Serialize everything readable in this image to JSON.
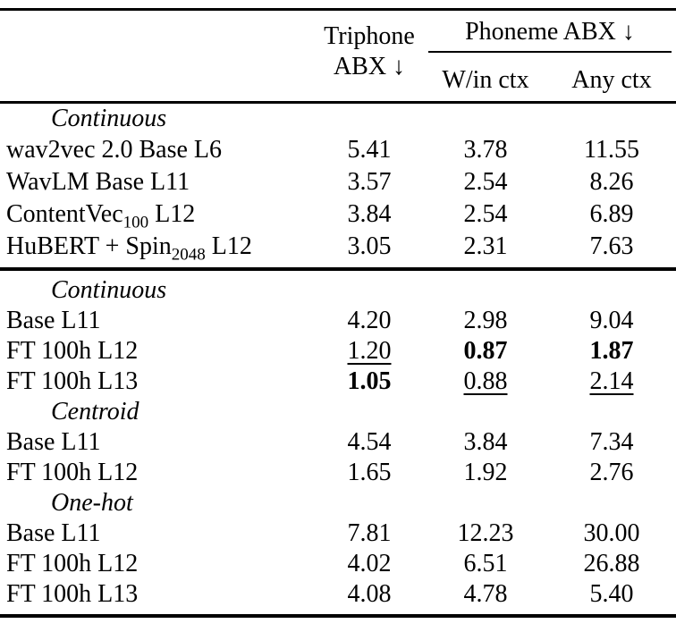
{
  "page": {
    "background": "#ffffff",
    "text_color": "#000000"
  },
  "table": {
    "header": {
      "col_triphone_line1": "Triphone",
      "col_triphone_line2": "ABX ↓",
      "col_phoneme_group": "Phoneme ABX ↓",
      "col_win_ctx": "W/in ctx",
      "col_any_ctx": "Any ctx"
    },
    "block1": {
      "section_label": "Continuous",
      "rows": [
        {
          "label": "wav2vec 2.0 Base L6",
          "triphone": "5.41",
          "win_ctx": "3.78",
          "any_ctx": "11.55"
        },
        {
          "label": "WavLM Base L11",
          "triphone": "3.57",
          "win_ctx": "2.54",
          "any_ctx": "8.26"
        },
        {
          "label_pre": "ContentVec",
          "label_sub": "100",
          "label_post": " L12",
          "triphone": "3.84",
          "win_ctx": "2.54",
          "any_ctx": "6.89"
        },
        {
          "label_pre": "HuBERT + Spin",
          "label_sub": "2048",
          "label_post": " L12",
          "triphone": "3.05",
          "win_ctx": "2.31",
          "any_ctx": "7.63"
        }
      ]
    },
    "block2": {
      "sections": [
        {
          "section_label": "Continuous",
          "rows": [
            {
              "label": "Base L11",
              "triphone": "4.20",
              "win_ctx": "2.98",
              "any_ctx": "9.04"
            },
            {
              "label": "FT 100h L12",
              "triphone": "1.20",
              "win_ctx": "0.87",
              "any_ctx": "1.87"
            },
            {
              "label": "FT 100h L13",
              "triphone": "1.05",
              "win_ctx": "0.88",
              "any_ctx": "2.14"
            }
          ]
        },
        {
          "section_label": "Centroid",
          "rows": [
            {
              "label": "Base L11",
              "triphone": "4.54",
              "win_ctx": "3.84",
              "any_ctx": "7.34"
            },
            {
              "label": "FT 100h L12",
              "triphone": "1.65",
              "win_ctx": "1.92",
              "any_ctx": "2.76"
            }
          ]
        },
        {
          "section_label": "One-hot",
          "rows": [
            {
              "label": "Base L11",
              "triphone": "7.81",
              "win_ctx": "12.23",
              "any_ctx": "30.00"
            },
            {
              "label": "FT 100h L12",
              "triphone": "4.02",
              "win_ctx": "6.51",
              "any_ctx": "26.88"
            },
            {
              "label": "FT 100h L13",
              "triphone": "4.08",
              "win_ctx": "4.78",
              "any_ctx": "5.40"
            }
          ]
        }
      ]
    }
  }
}
